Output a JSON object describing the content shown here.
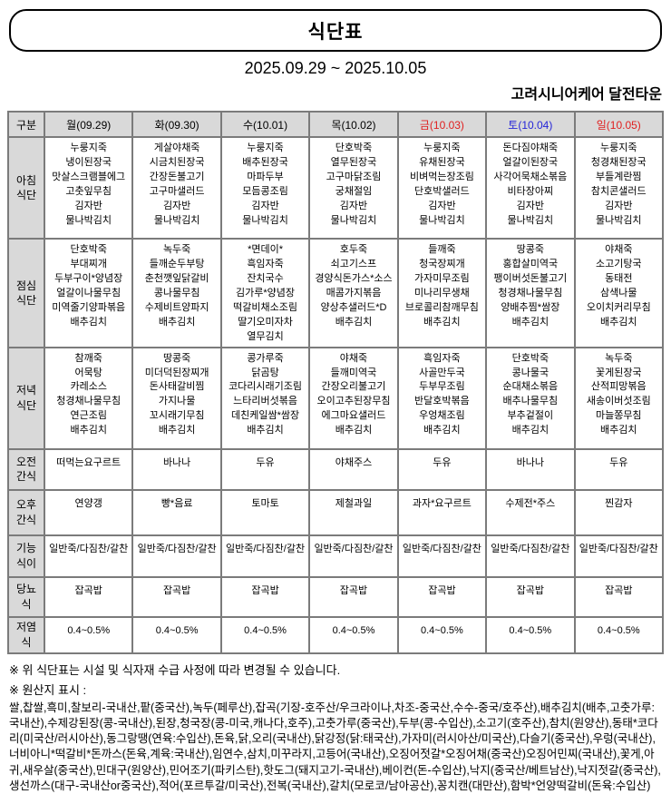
{
  "header": {
    "title": "식단표",
    "date_range": "2025.09.29 ~ 2025.10.05",
    "facility": "고려시니어케어 달전타운"
  },
  "colors": {
    "weekday": "#000000",
    "friday_sunday_red": "#e02020",
    "saturday_blue": "#2525d8",
    "header_bg": "#d9d9d9",
    "border": "#7b7b7b"
  },
  "table": {
    "corner_label": "구분",
    "columns": [
      {
        "key": "mon",
        "label": "월(09.29)",
        "color": "#000000"
      },
      {
        "key": "tue",
        "label": "화(09.30)",
        "color": "#000000"
      },
      {
        "key": "wed",
        "label": "수(10.01)",
        "color": "#000000"
      },
      {
        "key": "thu",
        "label": "목(10.02)",
        "color": "#000000"
      },
      {
        "key": "fri",
        "label": "금(10.03)",
        "color": "#e02020"
      },
      {
        "key": "sat",
        "label": "토(10.04)",
        "color": "#2525d8"
      },
      {
        "key": "sun",
        "label": "일(10.05)",
        "color": "#e02020"
      }
    ],
    "rows": [
      {
        "key": "breakfast",
        "label": "아침식단",
        "cells": [
          [
            "누룽지죽",
            "냉이된장국",
            "맛살스크램블에그",
            "고춧잎무침",
            "김자반",
            "물나박김치"
          ],
          [
            "게살야채죽",
            "시금치된장국",
            "간장돈불고기",
            "고구마샐러드",
            "김자반",
            "물나박김치"
          ],
          [
            "누룽지죽",
            "배추된장국",
            "마파두부",
            "모듬콩조림",
            "김자반",
            "물나박김치"
          ],
          [
            "단호박죽",
            "열무된장국",
            "고구마닭조림",
            "궁채절임",
            "김자반",
            "물나박김치"
          ],
          [
            "누룽지죽",
            "유채된장국",
            "비벼먹는장조림",
            "단호박샐러드",
            "김자반",
            "물나박김치"
          ],
          [
            "돈다짐야채죽",
            "얼갈이된장국",
            "사각어묵채소볶음",
            "비타장아찌",
            "김자반",
            "물나박김치"
          ],
          [
            "누룽지죽",
            "청경채된장국",
            "부들계란찜",
            "참치콘샐러드",
            "김자반",
            "물나박김치"
          ]
        ]
      },
      {
        "key": "lunch",
        "label": "점심식단",
        "cells": [
          [
            "단호박죽",
            "부대찌개",
            "두부구이*양념장",
            "얼갈이나물무침",
            "미역줄기양파볶음",
            "배추김치"
          ],
          [
            "녹두죽",
            "들깨순두부탕",
            "춘천깻잎닭갈비",
            "콩나물무침",
            "수제비트양파지",
            "배추김치"
          ],
          [
            "*면데이*",
            "흑임자죽",
            "잔치국수",
            "김가루*양념장",
            "떡갈비채소조림",
            "딸기오미자차",
            "열무김치"
          ],
          [
            "호두죽",
            "쇠고기스프",
            "경양식돈가스*소스",
            "매콤가지볶음",
            "양상추샐러드*D",
            "배추김치"
          ],
          [
            "들깨죽",
            "청국장찌개",
            "가자미무조림",
            "미나리무생채",
            "브로콜리참깨무침",
            "배추김치"
          ],
          [
            "땅콩죽",
            "홍합살미역국",
            "팽이버섯돈불고기",
            "청경채나물무침",
            "양배추찜*쌈장",
            "배추김치"
          ],
          [
            "야채죽",
            "소고기탕국",
            "동태전",
            "삼색나물",
            "오이치커리무침",
            "배추김치"
          ]
        ]
      },
      {
        "key": "dinner",
        "label": "저녁식단",
        "cells": [
          [
            "참깨죽",
            "어묵탕",
            "카레소스",
            "청경채나물무침",
            "연근조림",
            "배추김치"
          ],
          [
            "땅콩죽",
            "미더덕된장찌개",
            "돈사태갈비찜",
            "가지나물",
            "꼬시래기무침",
            "배추김치"
          ],
          [
            "콩가루죽",
            "닭곰탕",
            "코다리시래기조림",
            "느타리버섯볶음",
            "데친케일쌈*쌈장",
            "배추김치"
          ],
          [
            "야채죽",
            "들깨미역국",
            "간장오리불고기",
            "오이고추된장무침",
            "에그마요샐러드",
            "배추김치"
          ],
          [
            "흑임자죽",
            "사골만두국",
            "두부무조림",
            "반달호박볶음",
            "우엉채조림",
            "배추김치"
          ],
          [
            "단호박죽",
            "콩나물국",
            "순대채소볶음",
            "배추나물무침",
            "부추겉절이",
            "배추김치"
          ],
          [
            "녹두죽",
            "꽃게된장국",
            "산적피망볶음",
            "새송이버섯조림",
            "마늘쫑무침",
            "배추김치"
          ]
        ]
      },
      {
        "key": "morning-snack",
        "label": "오전간식",
        "cells": [
          "떠먹는요구르트",
          "바나나",
          "두유",
          "야채주스",
          "두유",
          "바나나",
          "두유"
        ]
      },
      {
        "key": "afternoon-snack",
        "label": "오후간식",
        "cells": [
          "연양갱",
          "빵*음료",
          "토마토",
          "제철과일",
          "과자*요구르트",
          "수제전*주스",
          "찐감자"
        ]
      },
      {
        "key": "texture-diet",
        "label": "기능식이",
        "cells": [
          "일반죽/다짐찬/갈찬",
          "일반죽/다짐찬/갈찬",
          "일반죽/다짐찬/갈찬",
          "일반죽/다짐찬/갈찬",
          "일반죽/다짐찬/갈찬",
          "일반죽/다짐찬/갈찬",
          "일반죽/다짐찬/갈찬"
        ]
      },
      {
        "key": "diabetic-diet",
        "label": "당뇨식",
        "cells": [
          "잡곡밥",
          "잡곡밥",
          "잡곡밥",
          "잡곡밥",
          "잡곡밥",
          "잡곡밥",
          "잡곡밥"
        ]
      },
      {
        "key": "low-salt-diet",
        "label": "저염식",
        "cells": [
          "0.4~0.5%",
          "0.4~0.5%",
          "0.4~0.5%",
          "0.4~0.5%",
          "0.4~0.5%",
          "0.4~0.5%",
          "0.4~0.5%"
        ]
      }
    ]
  },
  "footnotes": {
    "change_notice": "※ 위 식단표는 시설 및 식자재 수급 사정에 따라 변경될 수 있습니다.",
    "origin_label": "※ 원산지 표시 :",
    "origin_text": "쌀,찹쌀,흑미,찰보리-국내산,팥(중국산),녹두(페루산),잡곡(기장-호주산/우크라이나,차조-중국산,수수-중국/호주산),배추김치(배추,고춧가루:국내산),수제강된장(콩-국내산),된장,청국장(콩-미국,캐나다,호주),고춧가루(중국산),두부(콩-수입산),소고기(호주산),참치(원양산),동태*코다리(미국산/러시아산),동그랑땡(연육:수입산),돈육,닭,오리(국내산),닭강정(닭:태국산),가자미(러시아산/미국산),다슬기(중국산),우렁(국내산),너비아니*떡갈비*돈까스(돈육,계육:국내산),임연수,삼치,미꾸라지,고등어(국내산),오징어젓갈*오징어채(중국산)오징어민찌(국내산),꽃게,아귀,새우살(중국산),민대구(원양산),민어조기(파키스탄),핫도그(돼지고기-국내산),베이컨(돈-수입산),낙지(중국산/베트남산),낙지젓갈(중국산),생선까스(대구-국내산or중국산),적어(포르투갈/미국산),전복(국내산),갈치(모로코/남아공산),꽁치캔(대만산),함박*언양떡갈비(돈육:수입산)"
  }
}
